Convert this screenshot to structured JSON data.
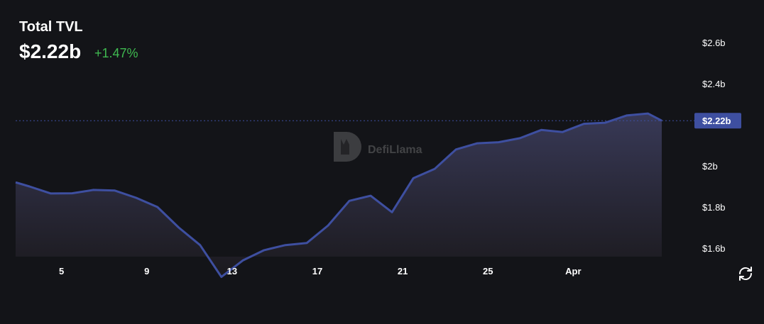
{
  "header": {
    "title": "Total TVL",
    "value": "$2.22b",
    "change": "+1.47%"
  },
  "watermark": "DefiLlama",
  "icons": {
    "refresh": "refresh-icon",
    "watermark_logo": "defillama-logo-icon"
  },
  "colors": {
    "background": "#131418",
    "line": "#3e4fa0",
    "positive": "#3fb950",
    "current_label_bg": "#3e4fa0"
  },
  "chart_data": {
    "type": "area",
    "title": "Total TVL",
    "xlabel": "",
    "ylabel": "",
    "ylim": [
      1.5,
      2.65
    ],
    "yticks": [
      1.6,
      1.8,
      2.0,
      2.2,
      2.4,
      2.6
    ],
    "ytick_labels": [
      "$1.6b",
      "$1.8b",
      "$2b",
      "",
      "$2.4b",
      "$2.6b"
    ],
    "current_value": 2.22,
    "current_label": "$2.22b",
    "xticks": [
      {
        "x": 5,
        "label": "5"
      },
      {
        "x": 9,
        "label": "9"
      },
      {
        "x": 13,
        "label": "13"
      },
      {
        "x": 17,
        "label": "17"
      },
      {
        "x": 21,
        "label": "21"
      },
      {
        "x": 25,
        "label": "25"
      },
      {
        "x": 29,
        "label": "Apr"
      }
    ],
    "xlim": [
      2.85,
      33.15
    ],
    "x": [
      2.85,
      3.5,
      4.5,
      5.5,
      6.5,
      7.5,
      8.5,
      9.5,
      10.5,
      11.5,
      12.5,
      13.5,
      14.5,
      15.5,
      16.5,
      17.5,
      18.5,
      19.5,
      20.5,
      21.5,
      22.5,
      23.5,
      24.5,
      25.5,
      26.5,
      27.5,
      28.5,
      29.5,
      30.5,
      31.5,
      32.5,
      33.15
    ],
    "values": [
      1.92,
      1.9,
      1.866,
      1.867,
      1.883,
      1.88,
      1.845,
      1.8,
      1.7,
      1.615,
      1.46,
      1.54,
      1.59,
      1.615,
      1.625,
      1.71,
      1.83,
      1.855,
      1.775,
      1.94,
      1.985,
      2.08,
      2.11,
      2.115,
      2.135,
      2.175,
      2.165,
      2.205,
      2.21,
      2.245,
      2.255,
      2.22
    ]
  }
}
